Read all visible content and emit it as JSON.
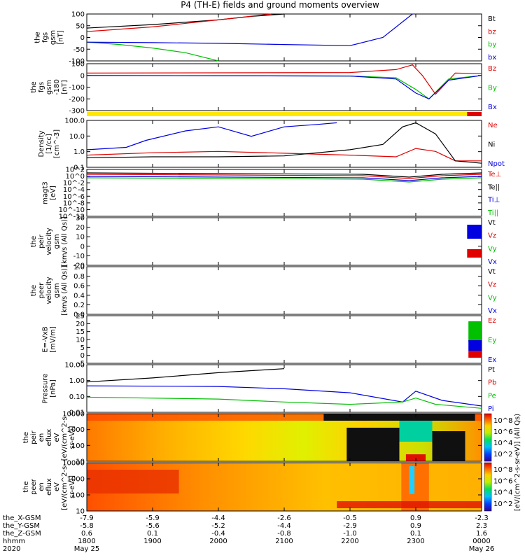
{
  "title": "P4 (TH-E) fields and ground moments overview",
  "panels": [
    {
      "id": "fgs-zoom",
      "ylabel": [
        "the",
        "fgs",
        "gsm",
        "[nT]"
      ],
      "yticks": [
        "100",
        "50",
        "0",
        "-50",
        "-100"
      ],
      "legend": [
        {
          "label": "Bt",
          "color": "#000000"
        },
        {
          "label": "bz",
          "color": "#e00000"
        },
        {
          "label": "by",
          "color": "#00c000"
        },
        {
          "label": "bx",
          "color": "#0000e0"
        }
      ]
    },
    {
      "id": "fgs-full",
      "ylabel": [
        "the",
        "fgs",
        "gsm",
        "-180",
        "[nT]"
      ],
      "yticks": [
        "100",
        "0",
        "-100",
        "-200",
        "-300"
      ],
      "legend": [
        {
          "label": "Bz",
          "color": "#e00000"
        },
        {
          "label": "By",
          "color": "#00c000"
        },
        {
          "label": "Bx",
          "color": "#0000e0"
        }
      ]
    },
    {
      "id": "density",
      "ylabel": [
        "Density",
        "[1/cc]",
        "[cm^-3]"
      ],
      "yticks": [
        "100.0",
        "10.0",
        "1.0",
        "0.1"
      ],
      "legend": [
        {
          "label": "Ne",
          "color": "#e00000"
        },
        {
          "label": "Ni",
          "color": "#000000"
        },
        {
          "label": "Npot",
          "color": "#0000e0"
        }
      ]
    },
    {
      "id": "temperature",
      "ylabel": [
        "magt3",
        "[eV]"
      ],
      "yticks": [
        "10^2",
        "10^0",
        "10^-2",
        "10^-4",
        "10^-6",
        "10^-8",
        "10^-10",
        "10^-12"
      ],
      "legend": [
        {
          "label": "Te⊥",
          "color": "#e00000"
        },
        {
          "label": "Te||",
          "color": "#000000"
        },
        {
          "label": "Ti⊥",
          "color": "#0000e0"
        },
        {
          "label": "Ti||",
          "color": "#00c000"
        }
      ]
    },
    {
      "id": "peir-velocity",
      "ylabel": [
        "the",
        "peir",
        "velocity",
        "gsm",
        "[km/s (All Qs)]"
      ],
      "yticks": [
        "30",
        "20",
        "10",
        "0",
        "-10",
        "-20"
      ],
      "legend": [
        {
          "label": "Vt",
          "color": "#000000"
        },
        {
          "label": "Vz",
          "color": "#e00000"
        },
        {
          "label": "Vy",
          "color": "#00c000"
        },
        {
          "label": "Vx",
          "color": "#0000e0"
        }
      ]
    },
    {
      "id": "peer-velocity",
      "ylabel": [
        "the",
        "peer",
        "velocity",
        "gsm",
        "[km/s (All Qs)]"
      ],
      "yticks": [
        "1.0",
        "0.8",
        "0.6",
        "0.4",
        "0.2",
        "0.0"
      ],
      "legend": [
        {
          "label": "Vt",
          "color": "#000000"
        },
        {
          "label": "Vz",
          "color": "#e00000"
        },
        {
          "label": "Vy",
          "color": "#00c000"
        },
        {
          "label": "Vx",
          "color": "#0000e0"
        }
      ]
    },
    {
      "id": "efield",
      "ylabel": [
        "E=-VxB",
        "[mV/m]"
      ],
      "yticks": [
        "25",
        "20",
        "15",
        "10",
        "5",
        "0",
        "-5"
      ],
      "legend": [
        {
          "label": "Ez",
          "color": "#e00000"
        },
        {
          "label": "Ey",
          "color": "#00c000"
        },
        {
          "label": "Ex",
          "color": "#0000e0"
        }
      ]
    },
    {
      "id": "pressure",
      "ylabel": [
        "Pressure",
        "[nPa]"
      ],
      "yticks": [
        "10.00",
        "1.00",
        "0.10",
        "0.01"
      ],
      "legend": [
        {
          "label": "Pt",
          "color": "#000000"
        },
        {
          "label": "Pb",
          "color": "#e00000"
        },
        {
          "label": "Pe",
          "color": "#00c000"
        },
        {
          "label": "Pi",
          "color": "#0000e0"
        }
      ]
    },
    {
      "id": "peir-spec",
      "ylabel": [
        "the",
        "peir",
        "en",
        "eflux",
        "eV",
        "[eV/(cm^2-s-",
        "sr-eV)]"
      ],
      "yticks": [
        "10000",
        "1000",
        "100",
        "10"
      ]
    },
    {
      "id": "peer-spec",
      "ylabel": [
        "the",
        "peer",
        "en",
        "eflux",
        "eV",
        "[eV/(cm^2-s-",
        "sr-eV)]"
      ],
      "yticks": [
        "10000",
        "1000",
        "100",
        "10"
      ]
    }
  ],
  "colorbar": {
    "label": "[eV/(cm^2-s-sr-eV)] (All Qs)",
    "ticks_top": [
      "10^8",
      "10^6",
      "10^4",
      "10^2"
    ],
    "ticks_bottom": [
      "10^8",
      "10^6",
      "10^4",
      "10^2"
    ]
  },
  "footer": {
    "row_labels": [
      "the_X-GSM",
      "the_Y-GSM",
      "the_Z-GSM",
      "hhmm",
      "2020"
    ],
    "columns": [
      {
        "vals": [
          "-7.9",
          "-5.8",
          "0.6",
          "1800",
          "May 25"
        ]
      },
      {
        "vals": [
          "-5.9",
          "-5.6",
          "0.1",
          "1900",
          ""
        ]
      },
      {
        "vals": [
          "-4.4",
          "-5.2",
          "-0.4",
          "2000",
          ""
        ]
      },
      {
        "vals": [
          "-2.6",
          "-4.4",
          "-0.8",
          "2100",
          ""
        ]
      },
      {
        "vals": [
          "-0.5",
          "-2.9",
          "-1.0",
          "2200",
          ""
        ]
      },
      {
        "vals": [
          "0.9",
          "0.9",
          "0.1",
          "2300",
          ""
        ]
      },
      {
        "vals": [
          "-2.3",
          "2.3",
          "1.6",
          "0000",
          "May 26"
        ]
      }
    ]
  },
  "chart_data": {
    "type": "line",
    "title": "P4 (TH-E) fields and ground moments overview",
    "x": {
      "label": "hhmm",
      "ticks": [
        "1800",
        "1900",
        "2000",
        "2100",
        "2200",
        "2300",
        "0000"
      ],
      "range": [
        "2020-05-25 18:00",
        "2020-05-26 00:00"
      ]
    },
    "series": [
      {
        "panel": "fgs-zoom",
        "name": "Bt",
        "x_hours": [
          0,
          1,
          2,
          2.5,
          3
        ],
        "y": [
          40,
          55,
          75,
          90,
          100
        ]
      },
      {
        "panel": "fgs-zoom",
        "name": "bz",
        "x_hours": [
          0,
          1,
          2,
          2.8
        ],
        "y": [
          25,
          45,
          75,
          100
        ]
      },
      {
        "panel": "fgs-zoom",
        "name": "by",
        "x_hours": [
          0,
          0.5,
          1,
          1.5,
          2
        ],
        "y": [
          -20,
          -30,
          -45,
          -65,
          -100
        ]
      },
      {
        "panel": "fgs-zoom",
        "name": "bx",
        "x_hours": [
          0,
          1,
          2,
          3,
          4,
          4.5,
          4.95
        ],
        "y": [
          -20,
          -22,
          -25,
          -30,
          -35,
          0,
          100
        ]
      },
      {
        "panel": "fgs-full",
        "name": "Bz",
        "x_hours": [
          0,
          4,
          4.7,
          4.95,
          5.1,
          5.3,
          5.6,
          6
        ],
        "y": [
          20,
          25,
          50,
          90,
          0,
          -160,
          20,
          15
        ]
      },
      {
        "panel": "fgs-full",
        "name": "By",
        "x_hours": [
          0,
          4,
          4.7,
          5.0,
          5.2,
          5.5,
          6
        ],
        "y": [
          0,
          -5,
          -20,
          -120,
          -200,
          -30,
          0
        ]
      },
      {
        "panel": "fgs-full",
        "name": "Bx",
        "x_hours": [
          0,
          4,
          4.7,
          5.0,
          5.2,
          5.5,
          6
        ],
        "y": [
          0,
          -5,
          -30,
          -150,
          -200,
          -40,
          0
        ]
      },
      {
        "panel": "density",
        "name": "Ne",
        "x_hours": [
          0,
          1,
          2,
          3,
          4,
          4.7,
          5.0,
          5.3,
          5.6,
          6
        ],
        "y": [
          0.8,
          1.2,
          1.5,
          1.1,
          0.8,
          0.6,
          2.5,
          1.5,
          0.3,
          0.3
        ]
      },
      {
        "panel": "density",
        "name": "Ni",
        "x_hours": [
          0,
          1,
          2,
          3,
          4,
          4.5,
          4.8,
          5.0,
          5.3,
          5.6,
          6
        ],
        "y": [
          0.5,
          0.6,
          0.6,
          0.7,
          2.0,
          5.0,
          100,
          200,
          30,
          0.3,
          0.2
        ]
      },
      {
        "panel": "density",
        "name": "Npot",
        "x_hours": [
          0,
          0.6,
          0.9,
          1.5,
          2,
          2.5,
          3.0,
          3.5,
          3.8
        ],
        "y": [
          2,
          3,
          10,
          50,
          100,
          20,
          100,
          150,
          200
        ]
      },
      {
        "panel": "pressure",
        "name": "Pt",
        "x_hours": [
          0,
          1,
          2,
          3
        ],
        "y": [
          1.0,
          2.0,
          5.0,
          10.0
        ]
      },
      {
        "panel": "pressure",
        "name": "Pi",
        "x_hours": [
          0,
          2,
          3,
          4,
          4.8,
          5.0,
          5.4,
          6
        ],
        "y": [
          0.5,
          0.45,
          0.3,
          0.15,
          0.03,
          0.2,
          0.04,
          0.015
        ]
      },
      {
        "panel": "pressure",
        "name": "Pe",
        "x_hours": [
          0,
          2,
          3,
          4,
          4.8,
          5.0,
          5.3,
          6
        ],
        "y": [
          0.07,
          0.05,
          0.03,
          0.02,
          0.03,
          0.06,
          0.02,
          0.01
        ]
      }
    ]
  }
}
